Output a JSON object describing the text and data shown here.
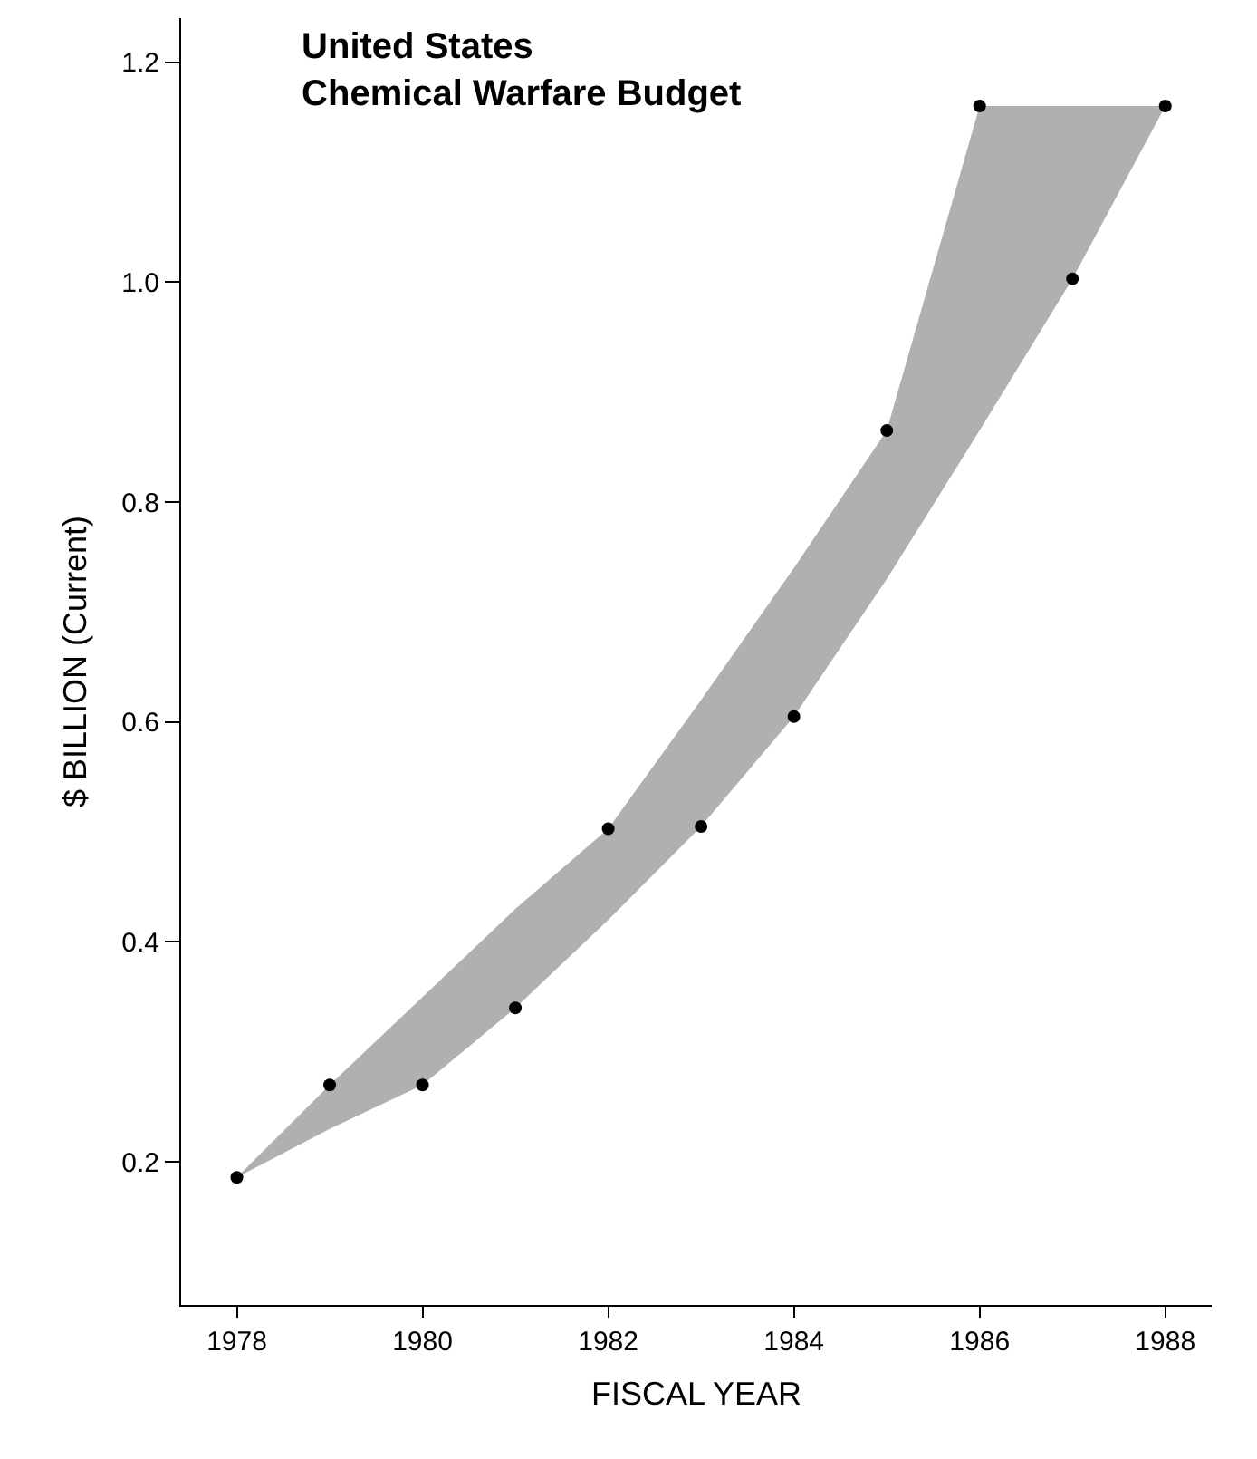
{
  "chart_data": {
    "type": "scatter",
    "title": "United States\nChemical Warfare Budget",
    "xlabel": "FISCAL YEAR",
    "ylabel": "$ BILLION (Current)",
    "x": [
      1978,
      1979,
      1980,
      1981,
      1982,
      1983,
      1984,
      1985,
      1986,
      1987,
      1988
    ],
    "series": [
      {
        "color": "#000000",
        "values": [
          0.186,
          0.27,
          0.27,
          0.34,
          0.503,
          0.505,
          0.605,
          0.865,
          1.16,
          1.003,
          1.16
        ],
        "lower": [
          0.186,
          0.23,
          0.27,
          0.34,
          0.42,
          0.505,
          0.605,
          0.73,
          0.865,
          1.003,
          1.16
        ],
        "upper": [
          0.186,
          0.27,
          0.35,
          0.43,
          0.503,
          0.62,
          0.74,
          0.865,
          1.16,
          1.16,
          1.16
        ]
      }
    ],
    "xlim": [
      1977.4,
      1988.5
    ],
    "xticks": [
      1978,
      1980,
      1982,
      1984,
      1986,
      1988
    ],
    "ylim": [
      0.07,
      1.24
    ],
    "yticks": [
      0.2,
      0.4,
      0.6,
      0.8,
      {
        "value": 1.0,
        "label": "1.0"
      },
      1.2
    ],
    "grid": false,
    "marker": "circle"
  }
}
